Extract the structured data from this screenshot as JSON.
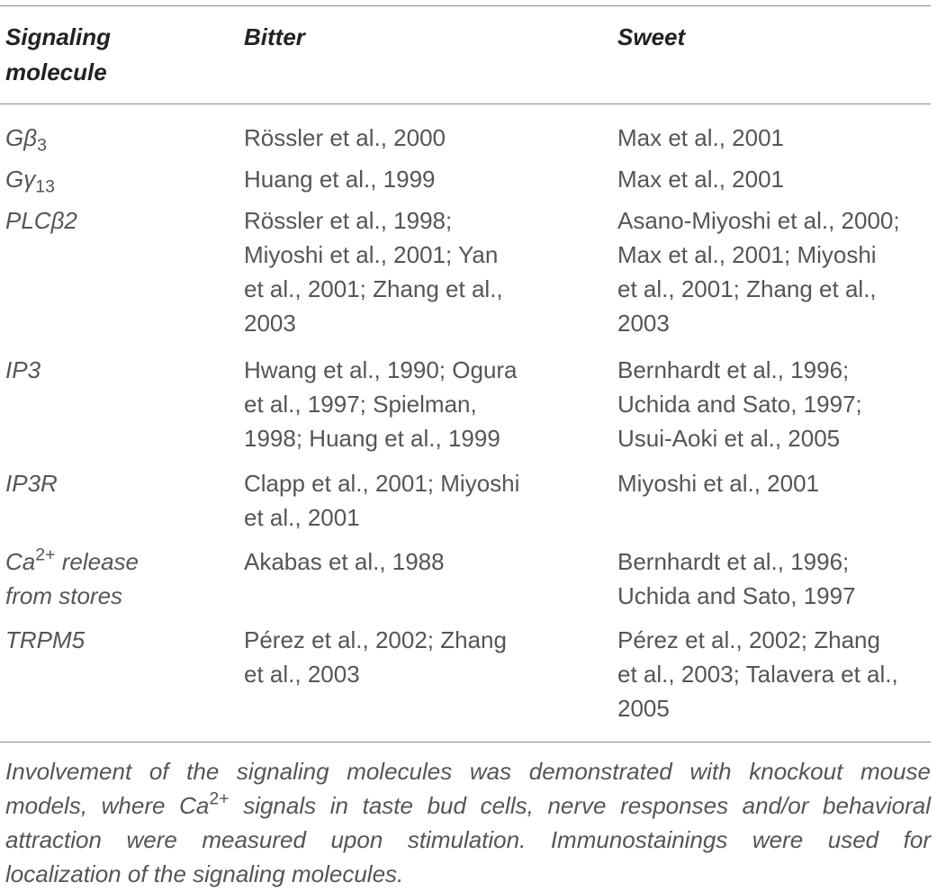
{
  "table": {
    "headers": {
      "col1": [
        "Signaling",
        "molecule"
      ],
      "col2": "Bitter",
      "col3": "Sweet"
    },
    "rows": [
      {
        "molecule": {
          "base": "Gβ",
          "sub": "3"
        },
        "bitter": [
          "Rössler et al., 2000"
        ],
        "sweet": [
          "Max et al., 2001"
        ]
      },
      {
        "molecule": {
          "base": "Gγ",
          "sub": "13"
        },
        "bitter": [
          "Huang et al., 1999"
        ],
        "sweet": [
          "Max et al., 2001"
        ]
      },
      {
        "molecule": {
          "base": "PLCβ2"
        },
        "bitter": [
          "Rössler et al., 1998;",
          "Miyoshi et al., 2001; Yan",
          "et al., 2001; Zhang et al.,",
          "2003"
        ],
        "sweet": [
          "Asano-Miyoshi et al., 2000;",
          "Max et al., 2001; Miyoshi",
          "et al., 2001; Zhang et al.,",
          "2003"
        ]
      },
      {
        "molecule": {
          "base": "IP3"
        },
        "bitter": [
          "Hwang et al., 1990; Ogura",
          "et al., 1997; Spielman,",
          "1998; Huang et al., 1999"
        ],
        "sweet": [
          "Bernhardt et al., 1996;",
          "Uchida and Sato, 1997;",
          "Usui-Aoki et al., 2005"
        ]
      },
      {
        "molecule": {
          "base": "IP3R"
        },
        "bitter": [
          "Clapp et al., 2001; Miyoshi",
          "et al., 2001"
        ],
        "sweet": [
          "Miyoshi et al., 2001"
        ]
      },
      {
        "molecule": {
          "base": "Ca",
          "sup": "2+",
          "rest": " release",
          "line2": "from stores"
        },
        "bitter": [
          "Akabas et al., 1988"
        ],
        "sweet": [
          "Bernhardt et al., 1996;",
          "Uchida and Sato, 1997"
        ]
      },
      {
        "molecule": {
          "base": "TRPM5"
        },
        "bitter": [
          "Pérez et al., 2002; Zhang",
          "et al., 2003"
        ],
        "sweet": [
          "Pérez et al., 2002; Zhang",
          "et al., 2003; Talavera et al.,",
          "2005"
        ]
      }
    ]
  },
  "footnote": {
    "line1": "Involvement of the signaling molecules was demonstrated with knockout mouse",
    "line2_pre": "models, where Ca",
    "line2_sup": "2+",
    "line2_post": " signals in taste bud cells, nerve responses and/or behavioral",
    "line3": "attraction were measured upon stimulation. Immunostainings were used for",
    "line4": "localization of the signaling molecules."
  }
}
